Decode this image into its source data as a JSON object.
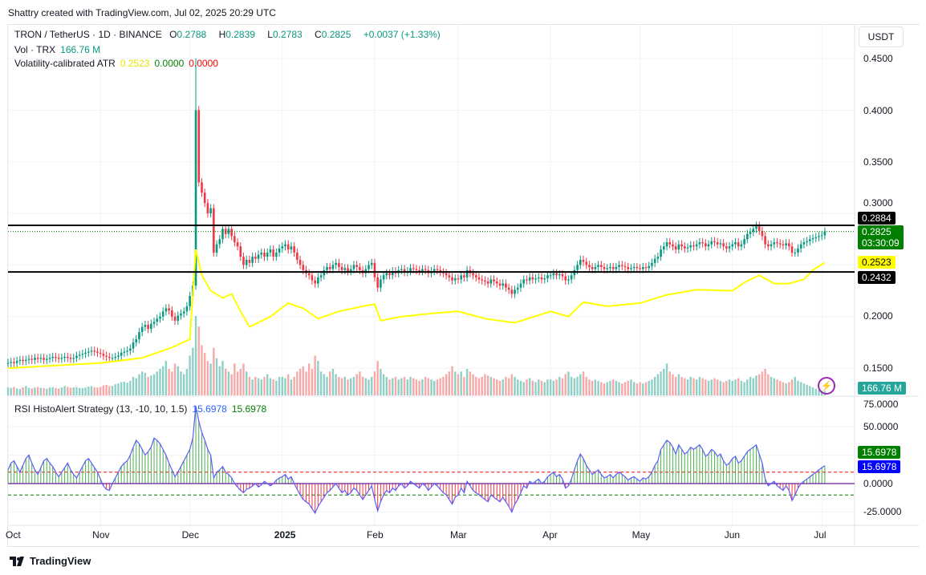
{
  "caption": "Shattry created with TradingView.com, Jul 02, 2025 20:29 UTC",
  "legend": {
    "symbol": "TRON / TetherUS · 1D · BINANCE",
    "o_label": "O",
    "o": "0.2788",
    "h_label": "H",
    "h": "0.2839",
    "l_label": "L",
    "l": "0.2783",
    "c_label": "C",
    "c": "0.2825",
    "change": "+0.0037 (+1.33%)",
    "vol_label": "Vol · TRX",
    "vol": "166.76 M",
    "atr_label": "Volatility-calibrated ATR",
    "atr_v1": "0.2523",
    "atr_v2": "0.0000",
    "atr_v3": "0.0000",
    "rsi_label": "RSI HistoAlert Strategy (13, -10, 10, 1.5)",
    "rsi_v1": "15.6978",
    "rsi_v2": "15.6978"
  },
  "currency": "USDT",
  "footer": {
    "brand": "TradingView"
  },
  "price_axis": {
    "ticks": [
      "0.4500",
      "0.4000",
      "0.3500",
      "0.3000",
      "0.2000",
      "0.1500"
    ]
  },
  "rsi_axis": {
    "ticks": [
      "75.0000",
      "50.0000",
      "0.0000",
      "-25.0000"
    ]
  },
  "tags": {
    "resistance": "0.2884",
    "last": "0.2825",
    "countdown": "03:30:09",
    "atr": "0.2523",
    "support": "0.2432",
    "volume": "166.76 M",
    "rsi_hist": "15.6978",
    "rsi_line": "15.6978"
  },
  "colors": {
    "up": "#089981",
    "down": "#f23645",
    "atr": "#ffff00",
    "rsi_line": "#5b5bff",
    "hist_up": "#4caf50",
    "hist_down": "#f23645",
    "level_line": "#000000",
    "last_price": "#008000"
  },
  "chart_data": [
    {
      "type": "candlestick",
      "start_date": "2024-10-01",
      "interval": "1D",
      "ylim": [
        0.13,
        0.46
      ],
      "x_ticks": [
        "Oct",
        "Nov",
        "Dec",
        "2025",
        "Feb",
        "Mar",
        "Apr",
        "May",
        "Jun",
        "Jul"
      ],
      "horizontal_levels": [
        0.2884,
        0.2432
      ],
      "last_price": 0.2825,
      "close": [
        0.155,
        0.156,
        0.155,
        0.157,
        0.158,
        0.157,
        0.158,
        0.159,
        0.158,
        0.16,
        0.159,
        0.16,
        0.158,
        0.159,
        0.16,
        0.161,
        0.16,
        0.159,
        0.16,
        0.161,
        0.16,
        0.159,
        0.16,
        0.162,
        0.163,
        0.164,
        0.165,
        0.166,
        0.167,
        0.166,
        0.165,
        0.164,
        0.162,
        0.161,
        0.16,
        0.16,
        0.161,
        0.162,
        0.165,
        0.166,
        0.167,
        0.169,
        0.175,
        0.178,
        0.185,
        0.19,
        0.192,
        0.188,
        0.193,
        0.195,
        0.198,
        0.2,
        0.205,
        0.208,
        0.206,
        0.2,
        0.196,
        0.201,
        0.203,
        0.205,
        0.21,
        0.22,
        0.23,
        0.4,
        0.33,
        0.32,
        0.31,
        0.3,
        0.305,
        0.262,
        0.27,
        0.275,
        0.285,
        0.28,
        0.285,
        0.278,
        0.272,
        0.268,
        0.258,
        0.25,
        0.255,
        0.252,
        0.258,
        0.256,
        0.26,
        0.262,
        0.258,
        0.262,
        0.265,
        0.258,
        0.262,
        0.266,
        0.268,
        0.27,
        0.265,
        0.268,
        0.262,
        0.255,
        0.25,
        0.245,
        0.242,
        0.24,
        0.235,
        0.232,
        0.238,
        0.24,
        0.245,
        0.248,
        0.246,
        0.25,
        0.252,
        0.248,
        0.245,
        0.247,
        0.244,
        0.246,
        0.25,
        0.248,
        0.245,
        0.242,
        0.246,
        0.25,
        0.252,
        0.238,
        0.228,
        0.236,
        0.24,
        0.242,
        0.24,
        0.244,
        0.242,
        0.245,
        0.246,
        0.243,
        0.244,
        0.247,
        0.246,
        0.245,
        0.244,
        0.246,
        0.245,
        0.242,
        0.244,
        0.246,
        0.245,
        0.243,
        0.242,
        0.24,
        0.238,
        0.235,
        0.237,
        0.236,
        0.24,
        0.238,
        0.245,
        0.242,
        0.24,
        0.238,
        0.236,
        0.235,
        0.234,
        0.232,
        0.236,
        0.234,
        0.232,
        0.23,
        0.232,
        0.228,
        0.226,
        0.222,
        0.226,
        0.228,
        0.232,
        0.236,
        0.235,
        0.238,
        0.236,
        0.237,
        0.238,
        0.236,
        0.237,
        0.24,
        0.24,
        0.242,
        0.24,
        0.241,
        0.239,
        0.235,
        0.236,
        0.24,
        0.245,
        0.25,
        0.255,
        0.253,
        0.25,
        0.248,
        0.246,
        0.248,
        0.25,
        0.248,
        0.246,
        0.247,
        0.248,
        0.246,
        0.248,
        0.25,
        0.249,
        0.248,
        0.246,
        0.247,
        0.248,
        0.247,
        0.246,
        0.248,
        0.247,
        0.249,
        0.252,
        0.256,
        0.258,
        0.265,
        0.268,
        0.272,
        0.27,
        0.268,
        0.265,
        0.27,
        0.268,
        0.266,
        0.267,
        0.269,
        0.268,
        0.27,
        0.272,
        0.271,
        0.268,
        0.27,
        0.273,
        0.272,
        0.27,
        0.271,
        0.268,
        0.266,
        0.268,
        0.27,
        0.272,
        0.268,
        0.27,
        0.275,
        0.28,
        0.282,
        0.285,
        0.288,
        0.283,
        0.278,
        0.27,
        0.268,
        0.27,
        0.272,
        0.271,
        0.27,
        0.269,
        0.271,
        0.268,
        0.262,
        0.262,
        0.266,
        0.27,
        0.272,
        0.273,
        0.275,
        0.276,
        0.277,
        0.278,
        0.2788,
        0.2825
      ],
      "volume_m": [
        300,
        280,
        320,
        260,
        240,
        300,
        350,
        280,
        260,
        300,
        320,
        290,
        270,
        250,
        300,
        310,
        280,
        260,
        300,
        350,
        320,
        290,
        300,
        310,
        280,
        270,
        300,
        330,
        350,
        310,
        300,
        320,
        380,
        400,
        350,
        360,
        420,
        450,
        500,
        520,
        480,
        550,
        700,
        650,
        800,
        900,
        850,
        700,
        750,
        800,
        900,
        1000,
        1100,
        1300,
        1000,
        900,
        1200,
        1100,
        900,
        800,
        1000,
        1500,
        1800,
        3000,
        2600,
        1900,
        1600,
        1300,
        1200,
        1800,
        1400,
        1100,
        1300,
        1000,
        900,
        800,
        1200,
        900,
        1000,
        1200,
        900,
        700,
        600,
        700,
        650,
        600,
        700,
        800,
        650,
        600,
        550,
        700,
        700,
        650,
        800,
        600,
        700,
        900,
        1000,
        1100,
        900,
        1200,
        1000,
        1500,
        1300,
        900,
        800,
        700,
        900,
        1000,
        800,
        700,
        650,
        700,
        600,
        650,
        700,
        800,
        900,
        700,
        650,
        600,
        700,
        900,
        1300,
        1000,
        800,
        700,
        600,
        650,
        700,
        600,
        650,
        700,
        600,
        700,
        650,
        600,
        550,
        600,
        700,
        650,
        600,
        550,
        600,
        650,
        700,
        800,
        900,
        1100,
        900,
        800,
        900,
        700,
        1000,
        900,
        800,
        700,
        650,
        700,
        800,
        750,
        700,
        650,
        600,
        550,
        600,
        700,
        650,
        800,
        700,
        600,
        550,
        500,
        600,
        650,
        550,
        500,
        600,
        550,
        500,
        600,
        600,
        550,
        600,
        700,
        650,
        800,
        900,
        700,
        650,
        700,
        800,
        900,
        700,
        600,
        550,
        600,
        550,
        500,
        450,
        500,
        550,
        600,
        550,
        500,
        450,
        500,
        550,
        600,
        500,
        450,
        500,
        450,
        500,
        550,
        600,
        700,
        800,
        900,
        1000,
        1200,
        900,
        800,
        700,
        800,
        700,
        650,
        600,
        700,
        650,
        600,
        700,
        650,
        600,
        550,
        600,
        650,
        600,
        550,
        500,
        550,
        600,
        550,
        600,
        650,
        550,
        500,
        600,
        700,
        650,
        750,
        800,
        900,
        1000,
        800,
        700,
        650,
        600,
        550,
        500,
        450,
        500,
        600,
        700,
        550,
        500,
        450,
        400,
        350,
        300,
        250,
        200,
        180,
        166.76
      ],
      "atr": [
        [
          "2024-10-01",
          0.15
        ],
        [
          "2024-11-01",
          0.155
        ],
        [
          "2024-11-15",
          0.16
        ],
        [
          "2024-11-25",
          0.17
        ],
        [
          "2024-12-01",
          0.178
        ],
        [
          "2024-12-03",
          0.265
        ],
        [
          "2024-12-05",
          0.24
        ],
        [
          "2024-12-08",
          0.225
        ],
        [
          "2024-12-12",
          0.218
        ],
        [
          "2024-12-15",
          0.222
        ],
        [
          "2024-12-18",
          0.205
        ],
        [
          "2024-12-21",
          0.19
        ],
        [
          "2024-12-28",
          0.2
        ],
        [
          "2025-01-03",
          0.213
        ],
        [
          "2025-01-08",
          0.208
        ],
        [
          "2025-01-13",
          0.198
        ],
        [
          "2025-01-20",
          0.205
        ],
        [
          "2025-01-28",
          0.21
        ],
        [
          "2025-02-01",
          0.212
        ],
        [
          "2025-02-03",
          0.196
        ],
        [
          "2025-02-10",
          0.2
        ],
        [
          "2025-02-20",
          0.203
        ],
        [
          "2025-03-01",
          0.205
        ],
        [
          "2025-03-10",
          0.198
        ],
        [
          "2025-03-20",
          0.194
        ],
        [
          "2025-04-01",
          0.205
        ],
        [
          "2025-04-07",
          0.2
        ],
        [
          "2025-04-12",
          0.214
        ],
        [
          "2025-04-20",
          0.21
        ],
        [
          "2025-05-01",
          0.213
        ],
        [
          "2025-05-10",
          0.221
        ],
        [
          "2025-05-20",
          0.226
        ],
        [
          "2025-06-01",
          0.225
        ],
        [
          "2025-06-05",
          0.233
        ],
        [
          "2025-06-10",
          0.24
        ],
        [
          "2025-06-15",
          0.232
        ],
        [
          "2025-06-20",
          0.232
        ],
        [
          "2025-06-25",
          0.236
        ],
        [
          "2025-06-28",
          0.245
        ],
        [
          "2025-07-02",
          0.2523
        ]
      ]
    },
    {
      "type": "histogram+line",
      "title": "RSI HistoAlert Strategy (13, -10, 10, 1.5)",
      "ylim": [
        -30,
        80
      ],
      "levels": {
        "upper": 10,
        "lower": -10,
        "zero": 0
      },
      "values": [
        12,
        18,
        20,
        15,
        10,
        16,
        22,
        25,
        18,
        12,
        8,
        14,
        20,
        22,
        18,
        15,
        10,
        6,
        10,
        14,
        18,
        12,
        8,
        5,
        10,
        15,
        20,
        22,
        18,
        14,
        10,
        4,
        -2,
        -5,
        -6,
        0,
        5,
        10,
        15,
        18,
        20,
        25,
        32,
        38,
        35,
        30,
        25,
        28,
        32,
        40,
        38,
        35,
        30,
        25,
        18,
        12,
        6,
        10,
        15,
        20,
        25,
        30,
        40,
        68,
        55,
        45,
        38,
        30,
        25,
        5,
        10,
        12,
        15,
        10,
        8,
        5,
        0,
        -3,
        -6,
        -8,
        -5,
        -4,
        -2,
        0,
        -3,
        -1,
        2,
        0,
        -2,
        0,
        3,
        5,
        6,
        8,
        4,
        6,
        0,
        -5,
        -10,
        -14,
        -16,
        -18,
        -22,
        -26,
        -20,
        -16,
        -12,
        -8,
        -6,
        -3,
        0,
        -4,
        -8,
        -6,
        -10,
        -8,
        -4,
        -6,
        -10,
        -14,
        -10,
        -6,
        -2,
        -14,
        -24,
        -16,
        -10,
        -6,
        -8,
        -4,
        -6,
        -2,
        0,
        -4,
        -2,
        2,
        0,
        -2,
        -4,
        0,
        -2,
        -6,
        -3,
        0,
        -2,
        -5,
        -8,
        -10,
        -14,
        -18,
        -12,
        -10,
        -4,
        -8,
        2,
        -2,
        -6,
        -8,
        -10,
        -12,
        -14,
        -16,
        -10,
        -12,
        -14,
        -16,
        -12,
        -16,
        -20,
        -25,
        -18,
        -14,
        -8,
        -2,
        -4,
        2,
        0,
        2,
        4,
        0,
        2,
        6,
        8,
        10,
        6,
        8,
        4,
        -4,
        -2,
        4,
        12,
        20,
        26,
        22,
        16,
        12,
        8,
        10,
        12,
        8,
        5,
        6,
        8,
        5,
        8,
        10,
        8,
        6,
        3,
        5,
        6,
        4,
        2,
        5,
        4,
        6,
        10,
        16,
        20,
        30,
        34,
        38,
        36,
        32,
        26,
        34,
        30,
        26,
        28,
        32,
        30,
        32,
        34,
        30,
        24,
        26,
        30,
        28,
        24,
        26,
        20,
        16,
        18,
        22,
        24,
        18,
        20,
        24,
        28,
        30,
        32,
        34,
        26,
        18,
        4,
        -2,
        0,
        2,
        -2,
        -4,
        -6,
        -2,
        -6,
        -15,
        -10,
        -4,
        0,
        2,
        4,
        6,
        8,
        10,
        12,
        14,
        15.6978
      ]
    }
  ]
}
